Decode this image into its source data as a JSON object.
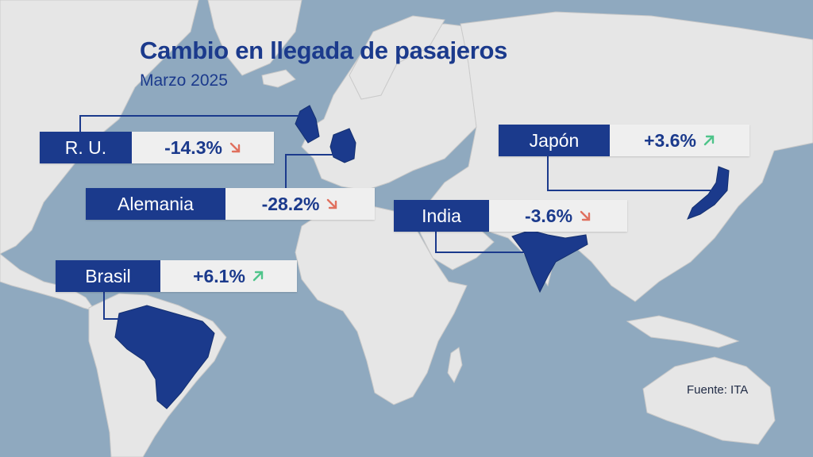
{
  "title": "Cambio en llegada de pasajeros",
  "subtitle": "Marzo 2025",
  "source": "Fuente: ITA",
  "colors": {
    "ocean": "#8fa9bf",
    "land": "#e6e6e6",
    "highlight": "#1b3a8c",
    "down": "#e0705e",
    "up": "#4fc48a"
  },
  "countries": {
    "uk": {
      "name": "R. U.",
      "change": "-14.3%",
      "trend": "down"
    },
    "germany": {
      "name": "Alemania",
      "change": "-28.2%",
      "trend": "down"
    },
    "brazil": {
      "name": "Brasil",
      "change": "+6.1%",
      "trend": "up"
    },
    "india": {
      "name": "India",
      "change": "-3.6%",
      "trend": "down"
    },
    "japan": {
      "name": "Japón",
      "change": "+3.6%",
      "trend": "up"
    }
  }
}
